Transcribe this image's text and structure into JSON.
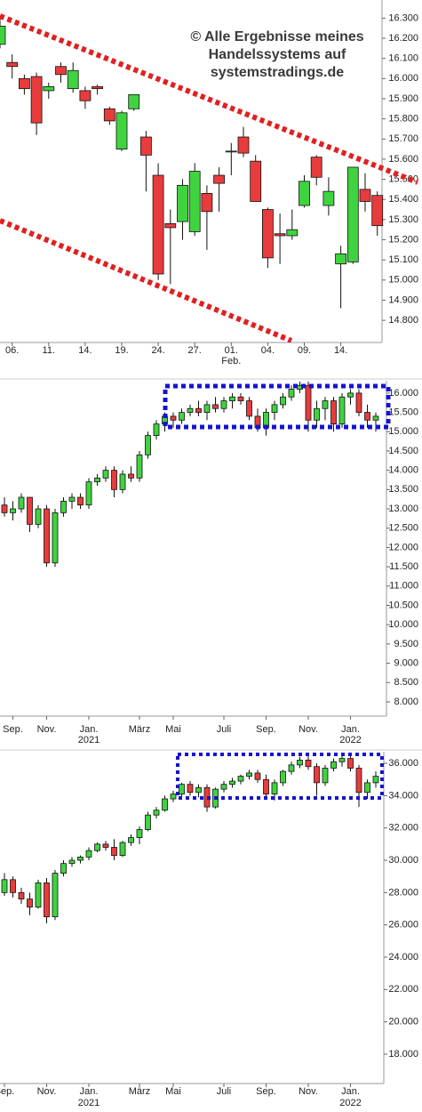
{
  "chart_data": [
    {
      "type": "candlestick",
      "annotations": [
        "© Alle Ergebnisse meines",
        "Handelssystems auf",
        "systemstradings.de"
      ],
      "categories": [
        null,
        "06.",
        null,
        null,
        "11.",
        null,
        null,
        "14.",
        null,
        null,
        "19.",
        null,
        null,
        "24.",
        null,
        null,
        "27.",
        null,
        null,
        "01.",
        null,
        null,
        "04.",
        null,
        null,
        "09.",
        null,
        null,
        "14.",
        null,
        null,
        null
      ],
      "sub_labels": [
        null,
        null,
        null,
        null,
        null,
        null,
        null,
        null,
        null,
        null,
        null,
        null,
        null,
        null,
        null,
        null,
        null,
        null,
        null,
        "Feb.",
        null,
        null,
        null,
        null,
        null,
        null,
        null,
        null,
        null,
        null,
        null,
        null
      ],
      "open": [
        16.17,
        16.08,
        16.0,
        16.01,
        15.94,
        16.06,
        15.95,
        15.94,
        15.96,
        15.85,
        15.65,
        15.85,
        15.71,
        15.52,
        15.28,
        15.29,
        15.24,
        15.43,
        15.52,
        15.64,
        15.71,
        15.59,
        15.35,
        15.23,
        15.22,
        15.37,
        15.61,
        15.37,
        15.08,
        15.09,
        15.45,
        15.42
      ],
      "high": [
        16.3,
        16.12,
        16.02,
        16.03,
        15.98,
        16.08,
        16.08,
        15.96,
        15.97,
        15.86,
        15.84,
        15.92,
        15.74,
        15.58,
        15.35,
        15.5,
        15.58,
        15.47,
        15.56,
        15.68,
        15.76,
        15.62,
        15.36,
        15.33,
        15.35,
        15.52,
        15.62,
        15.51,
        15.17,
        15.56,
        15.53,
        15.44
      ],
      "low": [
        16.15,
        16.0,
        15.92,
        15.72,
        15.9,
        15.98,
        15.93,
        15.85,
        15.92,
        15.77,
        15.64,
        15.84,
        15.44,
        15.0,
        14.98,
        15.2,
        15.22,
        15.15,
        15.34,
        15.52,
        15.61,
        15.39,
        15.06,
        15.08,
        15.2,
        15.36,
        15.47,
        15.32,
        14.86,
        15.08,
        15.34,
        15.22
      ],
      "close": [
        16.26,
        16.06,
        15.95,
        15.78,
        15.96,
        16.02,
        16.04,
        15.89,
        15.95,
        15.79,
        15.83,
        15.92,
        15.62,
        15.03,
        15.26,
        15.47,
        15.54,
        15.34,
        15.48,
        15.64,
        15.63,
        15.39,
        15.11,
        15.22,
        15.25,
        15.49,
        15.51,
        15.44,
        15.13,
        15.56,
        15.39,
        15.27
      ],
      "up_color": "#3fd43f",
      "down_color": "#e83c3c",
      "ylim": [
        14.69,
        16.39
      ],
      "yticks": [
        {
          "value": 14.8,
          "label": "14.800"
        },
        {
          "value": 14.9,
          "label": "14.900"
        },
        {
          "value": 15.0,
          "label": "15.000"
        },
        {
          "value": 15.1,
          "label": "15.100"
        },
        {
          "value": 15.2,
          "label": "15.200"
        },
        {
          "value": 15.3,
          "label": "15.300"
        },
        {
          "value": 15.4,
          "label": "15.400"
        },
        {
          "value": 15.5,
          "label": "15.500"
        },
        {
          "value": 15.6,
          "label": "15.600"
        },
        {
          "value": 15.7,
          "label": "15.700"
        },
        {
          "value": 15.8,
          "label": "15.800"
        },
        {
          "value": 15.9,
          "label": "15.900"
        },
        {
          "value": 16.0,
          "label": "16.000"
        },
        {
          "value": 16.1,
          "label": "16.100"
        },
        {
          "value": 16.2,
          "label": "16.200"
        },
        {
          "value": 16.3,
          "label": "16.300"
        }
      ]
    },
    {
      "type": "candlestick",
      "categories": [
        null,
        "Sep.",
        null,
        null,
        null,
        "Nov.",
        null,
        null,
        null,
        null,
        "Jan.",
        null,
        null,
        null,
        null,
        null,
        "März",
        null,
        null,
        null,
        "Mai",
        null,
        null,
        null,
        null,
        null,
        "Juli",
        null,
        null,
        null,
        null,
        "Sep.",
        null,
        null,
        null,
        null,
        "Nov.",
        null,
        null,
        null,
        null,
        "Jan.",
        null,
        null,
        null
      ],
      "sub_labels": [
        null,
        null,
        null,
        null,
        null,
        null,
        null,
        null,
        null,
        null,
        "2021",
        null,
        null,
        null,
        null,
        null,
        null,
        null,
        null,
        null,
        null,
        null,
        null,
        null,
        null,
        null,
        null,
        null,
        null,
        null,
        null,
        null,
        null,
        null,
        null,
        null,
        null,
        null,
        null,
        null,
        null,
        "2022",
        null,
        null,
        null
      ],
      "open": [
        13.1,
        12.9,
        13.0,
        13.3,
        12.6,
        13.0,
        11.6,
        12.9,
        13.2,
        13.3,
        13.1,
        13.7,
        13.8,
        14.0,
        13.5,
        13.9,
        13.8,
        14.4,
        14.9,
        15.2,
        15.4,
        15.3,
        15.5,
        15.6,
        15.5,
        15.7,
        15.6,
        15.8,
        15.9,
        15.8,
        15.4,
        15.1,
        15.5,
        15.7,
        15.9,
        16.1,
        16.2,
        15.3,
        15.6,
        15.8,
        15.2,
        15.9,
        16.0,
        15.5,
        15.3
      ],
      "high": [
        13.3,
        13.2,
        13.4,
        13.3,
        13.1,
        13.1,
        13.0,
        13.3,
        13.4,
        13.4,
        13.8,
        13.9,
        14.1,
        14.1,
        14.0,
        14.1,
        14.5,
        15.0,
        15.3,
        15.5,
        15.5,
        15.6,
        15.7,
        15.8,
        15.8,
        15.9,
        15.9,
        16.0,
        16.0,
        15.9,
        15.6,
        15.6,
        15.8,
        16.0,
        16.2,
        16.3,
        16.3,
        15.8,
        15.9,
        15.9,
        16.0,
        16.1,
        16.1,
        15.7,
        15.5
      ],
      "low": [
        12.8,
        12.7,
        12.9,
        12.4,
        12.5,
        11.5,
        11.5,
        12.8,
        13.0,
        13.0,
        13.0,
        13.6,
        13.7,
        13.3,
        13.4,
        13.7,
        13.7,
        14.3,
        14.8,
        15.0,
        15.1,
        15.2,
        15.4,
        15.4,
        15.3,
        15.5,
        15.5,
        15.6,
        15.7,
        15.3,
        15.0,
        14.9,
        15.3,
        15.6,
        15.8,
        16.0,
        15.0,
        15.1,
        15.3,
        15.0,
        15.1,
        15.7,
        15.4,
        15.1,
        15.0
      ],
      "close": [
        12.9,
        13.0,
        13.3,
        12.6,
        13.0,
        11.6,
        12.9,
        13.2,
        13.3,
        13.1,
        13.7,
        13.8,
        14.0,
        13.5,
        13.9,
        13.8,
        14.4,
        14.9,
        15.2,
        15.4,
        15.3,
        15.5,
        15.6,
        15.5,
        15.7,
        15.6,
        15.8,
        15.9,
        15.8,
        15.4,
        15.1,
        15.5,
        15.7,
        15.9,
        16.1,
        16.2,
        15.3,
        15.6,
        15.8,
        15.2,
        15.9,
        16.0,
        15.5,
        15.3,
        15.4
      ],
      "up_color": "#3fd43f",
      "down_color": "#e83c3c",
      "ylim": [
        7.63,
        16.32
      ],
      "yticks": [
        {
          "value": 8.0,
          "label": "8.000"
        },
        {
          "value": 8.5,
          "label": "8.500"
        },
        {
          "value": 9.0,
          "label": "9.000"
        },
        {
          "value": 9.5,
          "label": "9.500"
        },
        {
          "value": 10.0,
          "label": "10.000"
        },
        {
          "value": 10.5,
          "label": "10.500"
        },
        {
          "value": 11.0,
          "label": "11.000"
        },
        {
          "value": 11.5,
          "label": "11.500"
        },
        {
          "value": 12.0,
          "label": "12.000"
        },
        {
          "value": 12.5,
          "label": "12.500"
        },
        {
          "value": 13.0,
          "label": "13.000"
        },
        {
          "value": 13.5,
          "label": "13.500"
        },
        {
          "value": 14.0,
          "label": "14.000"
        },
        {
          "value": 14.5,
          "label": "14.500"
        },
        {
          "value": 15.0,
          "label": "15.000"
        },
        {
          "value": 15.5,
          "label": "15.500"
        },
        {
          "value": 16.0,
          "label": "16.000"
        }
      ]
    },
    {
      "type": "candlestick",
      "categories": [
        "Sep.",
        null,
        null,
        null,
        null,
        "Nov.",
        null,
        null,
        null,
        null,
        "Jan.",
        null,
        null,
        null,
        null,
        null,
        "März",
        null,
        null,
        null,
        "Mai",
        null,
        null,
        null,
        null,
        null,
        "Juli",
        null,
        null,
        null,
        null,
        "Sep.",
        null,
        null,
        null,
        null,
        "Nov.",
        null,
        null,
        null,
        null,
        "Jan.",
        null,
        null,
        null
      ],
      "sub_labels": [
        null,
        null,
        null,
        null,
        null,
        null,
        null,
        null,
        null,
        null,
        "2021",
        null,
        null,
        null,
        null,
        null,
        null,
        null,
        null,
        null,
        null,
        null,
        null,
        null,
        null,
        null,
        null,
        null,
        null,
        null,
        null,
        null,
        null,
        null,
        null,
        null,
        null,
        null,
        null,
        null,
        null,
        "2022",
        null,
        null,
        null
      ],
      "open": [
        28.0,
        28.8,
        28.0,
        27.6,
        27.1,
        28.6,
        26.5,
        29.2,
        29.8,
        30.0,
        30.2,
        30.6,
        31.0,
        30.8,
        30.3,
        31.1,
        31.4,
        31.9,
        32.8,
        33.1,
        33.8,
        34.1,
        34.7,
        34.2,
        34.5,
        33.3,
        34.4,
        34.7,
        34.9,
        35.2,
        35.4,
        35.0,
        34.1,
        34.8,
        35.5,
        35.9,
        36.2,
        35.8,
        34.8,
        35.7,
        36.1,
        36.3,
        35.7,
        34.2,
        34.8
      ],
      "high": [
        29.2,
        29.0,
        28.3,
        28.0,
        28.8,
        28.9,
        29.4,
        30.0,
        30.2,
        30.3,
        30.8,
        31.1,
        31.2,
        31.3,
        31.2,
        31.6,
        32.1,
        33.0,
        33.3,
        34.0,
        34.3,
        34.8,
        34.9,
        34.7,
        34.7,
        34.5,
        34.9,
        35.1,
        35.3,
        35.6,
        35.6,
        35.3,
        35.0,
        35.6,
        36.1,
        36.4,
        36.5,
        36.0,
        35.9,
        36.3,
        36.6,
        36.5,
        35.9,
        35.0,
        35.5
      ],
      "low": [
        27.8,
        27.7,
        27.3,
        26.6,
        27.0,
        26.1,
        26.3,
        29.0,
        29.6,
        29.8,
        30.0,
        30.5,
        30.6,
        30.0,
        30.2,
        30.9,
        31.0,
        31.8,
        32.6,
        33.0,
        33.6,
        33.9,
        34.0,
        33.9,
        33.0,
        33.2,
        34.2,
        34.5,
        34.7,
        35.0,
        34.8,
        33.9,
        33.7,
        34.6,
        35.3,
        35.7,
        35.6,
        34.0,
        34.6,
        35.5,
        35.8,
        35.5,
        33.3,
        33.8,
        34.5
      ],
      "close": [
        28.8,
        28.0,
        27.6,
        27.1,
        28.6,
        26.5,
        29.2,
        29.8,
        30.0,
        30.2,
        30.6,
        31.0,
        30.8,
        30.3,
        31.1,
        31.4,
        31.9,
        32.8,
        33.1,
        33.8,
        34.1,
        34.7,
        34.2,
        34.5,
        33.3,
        34.4,
        34.7,
        34.9,
        35.2,
        35.4,
        35.0,
        34.1,
        34.8,
        35.5,
        35.9,
        36.2,
        35.8,
        34.8,
        35.7,
        36.1,
        36.3,
        35.7,
        34.2,
        34.8,
        35.2
      ],
      "up_color": "#3fd43f",
      "down_color": "#e83c3c",
      "ylim": [
        16.18,
        36.72
      ],
      "yticks": [
        {
          "value": 18,
          "label": "18.000"
        },
        {
          "value": 20,
          "label": "20.000"
        },
        {
          "value": 22,
          "label": "22.000"
        },
        {
          "value": 24,
          "label": "24.000"
        },
        {
          "value": 26,
          "label": "26.000"
        },
        {
          "value": 28,
          "label": "28.000"
        },
        {
          "value": 30,
          "label": "30.000"
        },
        {
          "value": 32,
          "label": "32.000"
        },
        {
          "value": 34,
          "label": "34.000"
        },
        {
          "value": 36,
          "label": "36.000"
        }
      ]
    }
  ]
}
